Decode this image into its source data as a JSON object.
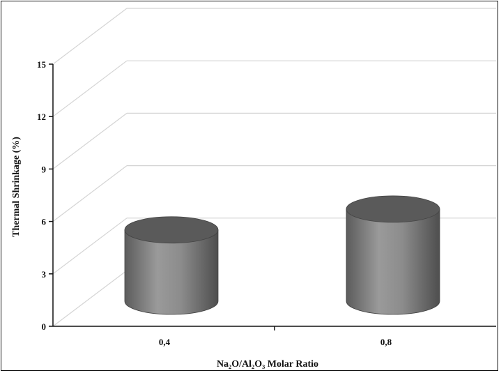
{
  "chart_data": {
    "type": "bar",
    "style": "3d-cylinder",
    "categories": [
      "0,4",
      "0,8"
    ],
    "values": [
      4.8,
      6.2
    ],
    "ylabel": "Thermal Shrinkage (%)",
    "xlabel": "Na₂O/Al₂O₃ Molar Ratio",
    "ylim": [
      0,
      15
    ],
    "yticks": [
      0,
      3,
      6,
      9,
      12,
      15
    ],
    "grid": true,
    "legend": "none",
    "bar_color": "#8a8a8a",
    "bar_top_color": "#5a5a5a",
    "grid_color": "#d4d4d4"
  }
}
